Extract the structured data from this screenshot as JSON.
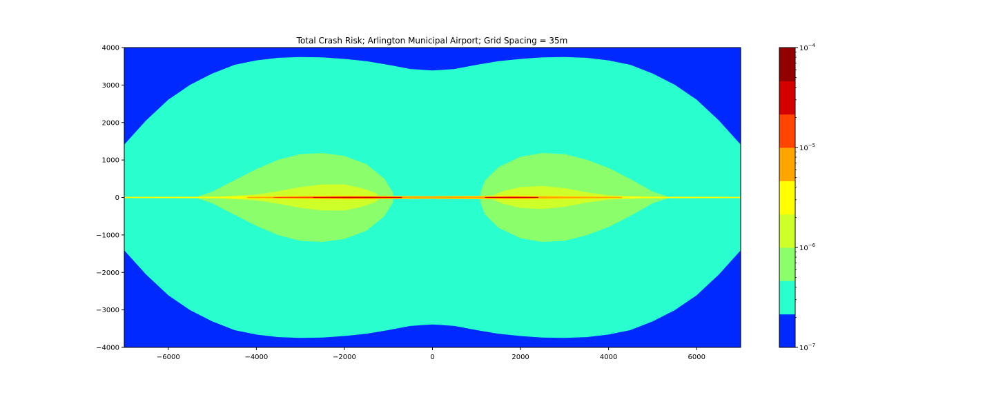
{
  "chart_data": {
    "type": "heatmap",
    "title": "Total Crash Risk; Arlington Municipal Airport; Grid Spacing = 35m",
    "xlabel": "",
    "ylabel": "",
    "xlim": [
      -7000,
      7000
    ],
    "ylim": [
      -4000,
      4000
    ],
    "x_ticks": [
      -6000,
      -4000,
      -2000,
      0,
      2000,
      4000,
      6000
    ],
    "x_tick_labels": [
      "−6000",
      "−4000",
      "−2000",
      "0",
      "2000",
      "4000",
      "6000"
    ],
    "y_ticks": [
      4000,
      3000,
      2000,
      1000,
      0,
      -1000,
      -2000,
      -3000,
      -4000
    ],
    "y_tick_labels": [
      "4000",
      "3000",
      "2000",
      "1000",
      "0",
      "−1000",
      "−2000",
      "−3000",
      "−4000"
    ],
    "colorbar": {
      "scale": "log",
      "range": [
        1e-07,
        0.0001
      ],
      "levels": [
        1e-07,
        1e-06,
        2e-06,
        3e-06,
        5e-06,
        1e-05,
        2e-05,
        3e-05,
        5e-05,
        0.0001
      ],
      "colors": [
        "#0029ff",
        "#29ffce",
        "#8bff6b",
        "#ceff29",
        "#ffff00",
        "#ffa500",
        "#ff4500",
        "#d40000",
        "#920000"
      ],
      "major_ticks": [
        {
          "value": 1e-07,
          "base": "10",
          "exp": "−7"
        },
        {
          "value": 1e-06,
          "base": "10",
          "exp": "−6"
        },
        {
          "value": 1e-05,
          "base": "10",
          "exp": "−5"
        },
        {
          "value": 0.0001,
          "base": "10",
          "exp": "−4"
        }
      ]
    },
    "contours": [
      {
        "level": "1e-6 to 2e-6",
        "color": "#29ffce",
        "points": [
          [
            -7000,
            1400
          ],
          [
            -6500,
            2050
          ],
          [
            -6000,
            2600
          ],
          [
            -5500,
            3000
          ],
          [
            -5000,
            3300
          ],
          [
            -4500,
            3530
          ],
          [
            -4000,
            3650
          ],
          [
            -3500,
            3720
          ],
          [
            -3000,
            3740
          ],
          [
            -2500,
            3730
          ],
          [
            -2000,
            3690
          ],
          [
            -1500,
            3630
          ],
          [
            -1000,
            3530
          ],
          [
            -500,
            3420
          ],
          [
            0,
            3380
          ],
          [
            500,
            3420
          ],
          [
            1000,
            3530
          ],
          [
            1500,
            3630
          ],
          [
            2000,
            3690
          ],
          [
            2500,
            3730
          ],
          [
            3000,
            3740
          ],
          [
            3500,
            3720
          ],
          [
            4000,
            3650
          ],
          [
            4500,
            3530
          ],
          [
            5000,
            3300
          ],
          [
            5500,
            3000
          ],
          [
            6000,
            2600
          ],
          [
            6500,
            2050
          ],
          [
            7000,
            1400
          ],
          [
            7000,
            -1400
          ],
          [
            6500,
            -2050
          ],
          [
            6000,
            -2600
          ],
          [
            5500,
            -3000
          ],
          [
            5000,
            -3300
          ],
          [
            4500,
            -3530
          ],
          [
            4000,
            -3650
          ],
          [
            3500,
            -3720
          ],
          [
            3000,
            -3740
          ],
          [
            2500,
            -3730
          ],
          [
            2000,
            -3690
          ],
          [
            1500,
            -3630
          ],
          [
            1000,
            -3530
          ],
          [
            500,
            -3420
          ],
          [
            0,
            -3380
          ],
          [
            -500,
            -3420
          ],
          [
            -1000,
            -3530
          ],
          [
            -1500,
            -3630
          ],
          [
            -2000,
            -3690
          ],
          [
            -2500,
            -3730
          ],
          [
            -3000,
            -3740
          ],
          [
            -3500,
            -3720
          ],
          [
            -4000,
            -3650
          ],
          [
            -4500,
            -3530
          ],
          [
            -5000,
            -3300
          ],
          [
            -5500,
            -3000
          ],
          [
            -6000,
            -2600
          ],
          [
            -6500,
            -2050
          ],
          [
            -7000,
            -1400
          ]
        ]
      },
      {
        "level": "2e-6 to 3e-6 (west)",
        "color": "#8bff6b",
        "points": [
          [
            -5300,
            30
          ],
          [
            -5000,
            150
          ],
          [
            -4500,
            450
          ],
          [
            -4000,
            750
          ],
          [
            -3500,
            1000
          ],
          [
            -3000,
            1150
          ],
          [
            -2500,
            1180
          ],
          [
            -2000,
            1100
          ],
          [
            -1500,
            880
          ],
          [
            -1100,
            500
          ],
          [
            -900,
            120
          ],
          [
            -900,
            -120
          ],
          [
            -1100,
            -500
          ],
          [
            -1500,
            -880
          ],
          [
            -2000,
            -1100
          ],
          [
            -2500,
            -1180
          ],
          [
            -3000,
            -1150
          ],
          [
            -3500,
            -1000
          ],
          [
            -4000,
            -750
          ],
          [
            -4500,
            -450
          ],
          [
            -5000,
            -150
          ],
          [
            -5300,
            -30
          ]
        ]
      },
      {
        "level": "2e-6 to 3e-6 (east)",
        "color": "#8bff6b",
        "points": [
          [
            1100,
            150
          ],
          [
            1200,
            450
          ],
          [
            1500,
            800
          ],
          [
            2000,
            1080
          ],
          [
            2500,
            1180
          ],
          [
            3000,
            1150
          ],
          [
            3500,
            1000
          ],
          [
            4000,
            780
          ],
          [
            4500,
            480
          ],
          [
            5000,
            150
          ],
          [
            5300,
            30
          ],
          [
            5300,
            -30
          ],
          [
            5000,
            -150
          ],
          [
            4500,
            -480
          ],
          [
            4000,
            -780
          ],
          [
            3500,
            -1000
          ],
          [
            3000,
            -1150
          ],
          [
            2500,
            -1180
          ],
          [
            2000,
            -1080
          ],
          [
            1500,
            -800
          ],
          [
            1200,
            -450
          ],
          [
            1100,
            -150
          ]
        ]
      },
      {
        "level": "3e-6 to 5e-6 (west)",
        "color": "#ceff29",
        "points": [
          [
            -4800,
            15
          ],
          [
            -4000,
            70
          ],
          [
            -3500,
            160
          ],
          [
            -3000,
            270
          ],
          [
            -2500,
            340
          ],
          [
            -2000,
            340
          ],
          [
            -1600,
            240
          ],
          [
            -1300,
            120
          ],
          [
            -1200,
            0
          ],
          [
            -1300,
            -120
          ],
          [
            -1600,
            -240
          ],
          [
            -2000,
            -340
          ],
          [
            -2500,
            -340
          ],
          [
            -3000,
            -270
          ],
          [
            -3500,
            -160
          ],
          [
            -4000,
            -70
          ],
          [
            -4800,
            -15
          ]
        ]
      },
      {
        "level": "3e-6 to 5e-6 (east)",
        "color": "#ceff29",
        "points": [
          [
            1400,
            60
          ],
          [
            1600,
            160
          ],
          [
            2000,
            270
          ],
          [
            2500,
            300
          ],
          [
            3000,
            240
          ],
          [
            3500,
            130
          ],
          [
            4000,
            50
          ],
          [
            4800,
            12
          ],
          [
            4800,
            -12
          ],
          [
            4000,
            -50
          ],
          [
            3500,
            -130
          ],
          [
            3000,
            -240
          ],
          [
            2500,
            -300
          ],
          [
            2000,
            -270
          ],
          [
            1600,
            -160
          ],
          [
            1400,
            -60
          ]
        ]
      },
      {
        "level": "5e-6 to 1e-5",
        "color": "#ffff00",
        "points": [
          [
            -7000,
            8
          ],
          [
            -5000,
            14
          ],
          [
            -3500,
            30
          ],
          [
            -2000,
            45
          ],
          [
            0,
            30
          ],
          [
            2000,
            45
          ],
          [
            3500,
            30
          ],
          [
            5000,
            14
          ],
          [
            7000,
            8
          ],
          [
            7000,
            -8
          ],
          [
            5000,
            -14
          ],
          [
            3500,
            -30
          ],
          [
            2000,
            -45
          ],
          [
            0,
            -30
          ],
          [
            -2000,
            -45
          ],
          [
            -3500,
            -30
          ],
          [
            -5000,
            -14
          ],
          [
            -7000,
            -8
          ]
        ]
      },
      {
        "level": "1e-5 to 2e-5",
        "color": "#ffa500",
        "points": [
          [
            -4200,
            8
          ],
          [
            -3000,
            18
          ],
          [
            -2000,
            28
          ],
          [
            -1000,
            22
          ],
          [
            0,
            22
          ],
          [
            1000,
            22
          ],
          [
            2000,
            28
          ],
          [
            3000,
            18
          ],
          [
            4300,
            8
          ],
          [
            4300,
            -8
          ],
          [
            3000,
            -18
          ],
          [
            2000,
            -28
          ],
          [
            1000,
            -22
          ],
          [
            0,
            -22
          ],
          [
            -1000,
            -22
          ],
          [
            -2000,
            -28
          ],
          [
            -3000,
            -18
          ],
          [
            -4200,
            -8
          ]
        ]
      },
      {
        "level": "2e-5 to 3e-5",
        "color": "#ff4500",
        "points": [
          [
            -3600,
            5
          ],
          [
            -2600,
            12
          ],
          [
            -1500,
            14
          ],
          [
            -700,
            8
          ],
          [
            -700,
            -8
          ],
          [
            -1500,
            -14
          ],
          [
            -2600,
            -12
          ],
          [
            -3600,
            -5
          ]
        ]
      },
      {
        "level": "3e-5 to 5e-5 (west)",
        "color": "#d40000",
        "points": [
          [
            -2700,
            4
          ],
          [
            -1500,
            9
          ],
          [
            -700,
            5
          ],
          [
            -700,
            -5
          ],
          [
            -1500,
            -9
          ],
          [
            -2700,
            -4
          ]
        ]
      },
      {
        "level": "3e-5 to 5e-5 (east)",
        "color": "#d40000",
        "points": [
          [
            1200,
            5
          ],
          [
            1800,
            8
          ],
          [
            2400,
            4
          ],
          [
            2400,
            -4
          ],
          [
            1800,
            -8
          ],
          [
            1200,
            -5
          ]
        ]
      }
    ]
  }
}
